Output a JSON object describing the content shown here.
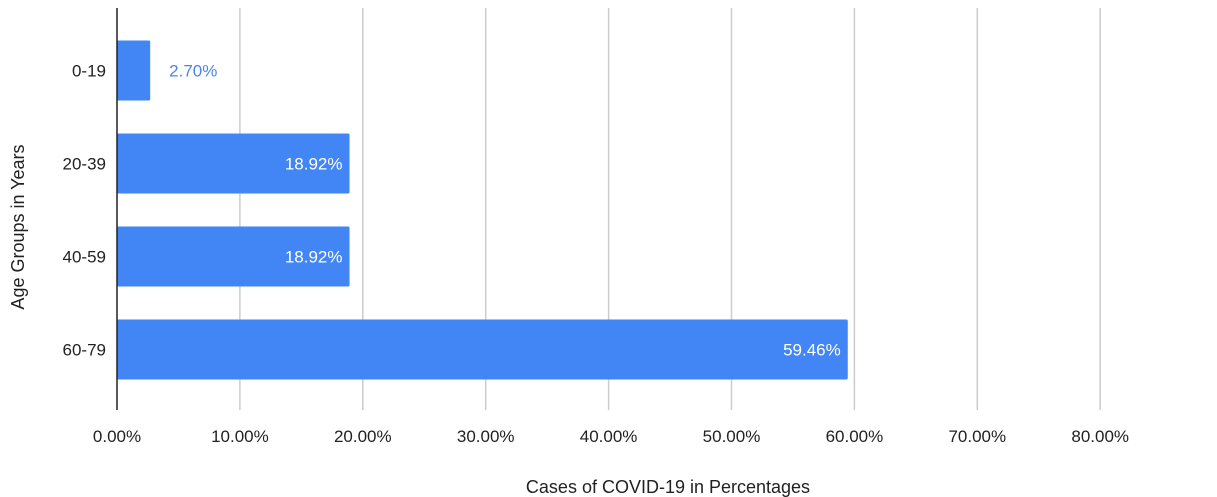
{
  "chart_data": {
    "type": "bar",
    "orientation": "horizontal",
    "categories": [
      "0-19",
      "20-39",
      "40-59",
      "60-79"
    ],
    "values": [
      2.7,
      18.92,
      18.92,
      59.46
    ],
    "data_labels": [
      "2.70%",
      "18.92%",
      "18.92%",
      "59.46%"
    ],
    "xlabel": "Cases of COVID-19 in Percentages",
    "ylabel": "Age Groups in Years",
    "xlim": [
      0,
      80
    ],
    "xticks": [
      0,
      10,
      20,
      30,
      40,
      50,
      60,
      70,
      80
    ],
    "xtick_labels": [
      "0.00%",
      "10.00%",
      "20.00%",
      "30.00%",
      "40.00%",
      "50.00%",
      "60.00%",
      "70.00%",
      "80.00%"
    ],
    "grid": "vertical",
    "legend": "none",
    "colors": {
      "bar": "#4285f4",
      "label_outside": "#4a86e8",
      "label_inside": "#ffffff",
      "grid": "#cccccc",
      "axis": "#222222"
    }
  }
}
